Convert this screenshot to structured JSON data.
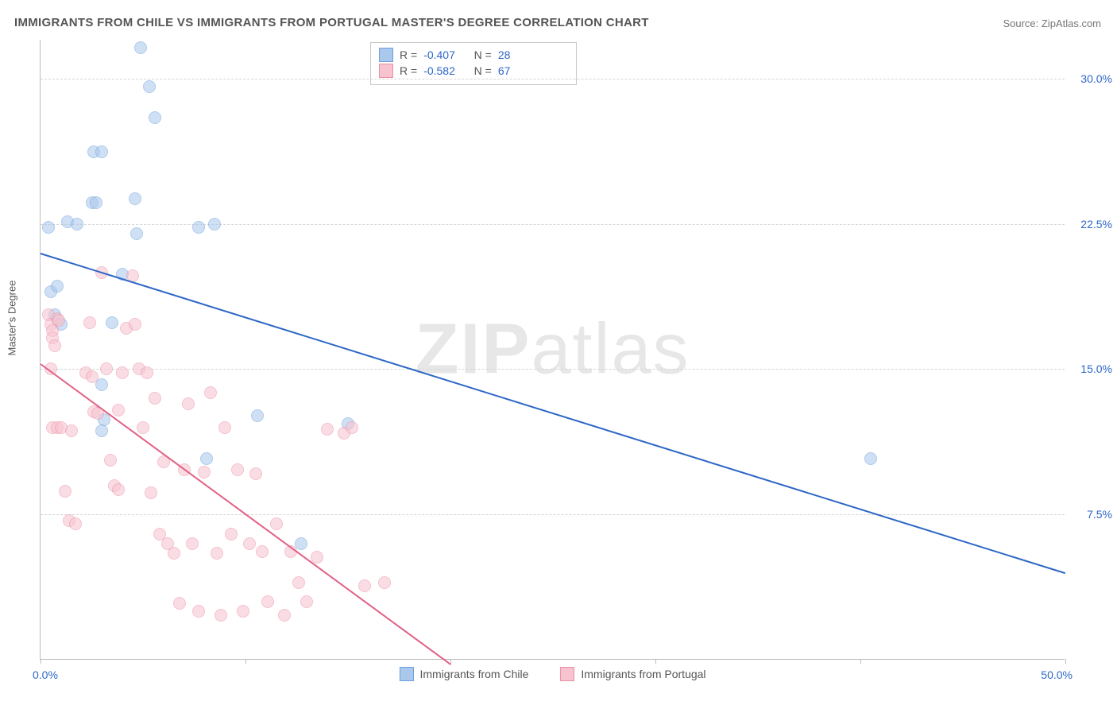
{
  "title": "IMMIGRANTS FROM CHILE VS IMMIGRANTS FROM PORTUGAL MASTER'S DEGREE CORRELATION CHART",
  "source": "Source: ZipAtlas.com",
  "ylabel": "Master's Degree",
  "watermark_zip": "ZIP",
  "watermark_atlas": "atlas",
  "chart": {
    "type": "scatter",
    "xlim": [
      0,
      50
    ],
    "ylim": [
      0,
      32
    ],
    "x_display_min": "0.0%",
    "x_display_max": "50.0%",
    "y_gridlines": [
      7.5,
      15.0,
      22.5,
      30.0
    ],
    "y_gridline_labels": [
      "7.5%",
      "15.0%",
      "22.5%",
      "30.0%"
    ],
    "x_ticks": [
      0,
      10,
      20,
      30,
      40,
      50
    ],
    "background_color": "#ffffff",
    "grid_color": "#d5d5d5",
    "axis_color": "#bbbbbb",
    "marker_radius": 8,
    "marker_opacity": 0.55,
    "series": [
      {
        "name": "Immigrants from Chile",
        "color_fill": "#a9c8ec",
        "color_stroke": "#6da0de",
        "trend_color": "#2d67c6",
        "R": "-0.407",
        "N": "28",
        "trend": {
          "x1": 0,
          "y1": 21.0,
          "x2": 50,
          "y2": 4.5
        },
        "points": [
          [
            0.4,
            22.3
          ],
          [
            0.5,
            19.0
          ],
          [
            0.8,
            19.3
          ],
          [
            0.7,
            17.8
          ],
          [
            1.0,
            17.3
          ],
          [
            1.3,
            22.6
          ],
          [
            1.8,
            22.5
          ],
          [
            2.5,
            23.6
          ],
          [
            2.7,
            23.6
          ],
          [
            2.6,
            26.2
          ],
          [
            3.0,
            26.2
          ],
          [
            3.5,
            17.4
          ],
          [
            3.0,
            14.2
          ],
          [
            4.0,
            19.9
          ],
          [
            4.7,
            22.0
          ],
          [
            4.9,
            31.6
          ],
          [
            5.3,
            29.6
          ],
          [
            5.6,
            28.0
          ],
          [
            4.6,
            23.8
          ],
          [
            3.1,
            12.4
          ],
          [
            3.0,
            11.8
          ],
          [
            7.7,
            22.3
          ],
          [
            8.5,
            22.5
          ],
          [
            8.1,
            10.4
          ],
          [
            10.6,
            12.6
          ],
          [
            12.7,
            6.0
          ],
          [
            15.0,
            12.2
          ],
          [
            40.5,
            10.4
          ]
        ]
      },
      {
        "name": "Immigrants from Portugal",
        "color_fill": "#f7c3cf",
        "color_stroke": "#ec8fa6",
        "trend_color": "#e26184",
        "R": "-0.582",
        "N": "67",
        "trend": {
          "x1": 0,
          "y1": 15.3,
          "x2": 20,
          "y2": -0.2
        },
        "points": [
          [
            0.4,
            17.8
          ],
          [
            0.5,
            17.3
          ],
          [
            0.6,
            17.0
          ],
          [
            0.6,
            16.6
          ],
          [
            0.7,
            16.2
          ],
          [
            0.8,
            17.6
          ],
          [
            0.9,
            17.5
          ],
          [
            0.5,
            15.0
          ],
          [
            0.6,
            12.0
          ],
          [
            0.8,
            12.0
          ],
          [
            1.0,
            12.0
          ],
          [
            1.5,
            11.8
          ],
          [
            1.2,
            8.7
          ],
          [
            1.4,
            7.2
          ],
          [
            1.7,
            7.0
          ],
          [
            2.2,
            14.8
          ],
          [
            2.4,
            17.4
          ],
          [
            2.5,
            14.6
          ],
          [
            2.6,
            12.8
          ],
          [
            2.8,
            12.7
          ],
          [
            3.0,
            20.0
          ],
          [
            3.2,
            15.0
          ],
          [
            3.4,
            10.3
          ],
          [
            3.6,
            9.0
          ],
          [
            3.8,
            8.8
          ],
          [
            3.8,
            12.9
          ],
          [
            4.0,
            14.8
          ],
          [
            4.2,
            17.1
          ],
          [
            4.5,
            19.8
          ],
          [
            4.6,
            17.3
          ],
          [
            4.8,
            15.0
          ],
          [
            5.0,
            12.0
          ],
          [
            5.2,
            14.8
          ],
          [
            5.4,
            8.6
          ],
          [
            5.6,
            13.5
          ],
          [
            5.8,
            6.5
          ],
          [
            6.0,
            10.2
          ],
          [
            6.2,
            6.0
          ],
          [
            6.5,
            5.5
          ],
          [
            6.8,
            2.9
          ],
          [
            7.0,
            9.8
          ],
          [
            7.2,
            13.2
          ],
          [
            7.4,
            6.0
          ],
          [
            7.7,
            2.5
          ],
          [
            8.0,
            9.7
          ],
          [
            8.3,
            13.8
          ],
          [
            8.6,
            5.5
          ],
          [
            8.8,
            2.3
          ],
          [
            9.0,
            12.0
          ],
          [
            9.3,
            6.5
          ],
          [
            9.6,
            9.8
          ],
          [
            9.9,
            2.5
          ],
          [
            10.2,
            6.0
          ],
          [
            10.5,
            9.6
          ],
          [
            10.8,
            5.6
          ],
          [
            11.1,
            3.0
          ],
          [
            11.5,
            7.0
          ],
          [
            11.9,
            2.3
          ],
          [
            12.2,
            5.6
          ],
          [
            12.6,
            4.0
          ],
          [
            13.0,
            3.0
          ],
          [
            13.5,
            5.3
          ],
          [
            14.0,
            11.9
          ],
          [
            14.8,
            11.7
          ],
          [
            15.2,
            12.0
          ],
          [
            15.8,
            3.8
          ],
          [
            16.8,
            4.0
          ]
        ]
      }
    ]
  },
  "legend_bottom": [
    {
      "label": "Immigrants from Chile",
      "fill": "#a9c8ec",
      "stroke": "#6da0de"
    },
    {
      "label": "Immigrants from Portugal",
      "fill": "#f7c3cf",
      "stroke": "#ec8fa6"
    }
  ]
}
